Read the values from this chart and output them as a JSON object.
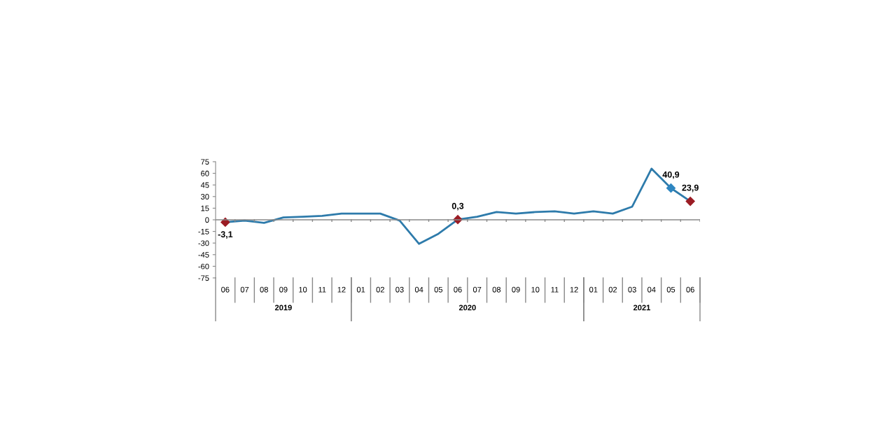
{
  "chart_data": {
    "type": "line",
    "categories": [
      "06",
      "07",
      "08",
      "09",
      "10",
      "11",
      "12",
      "01",
      "02",
      "03",
      "04",
      "05",
      "06",
      "07",
      "08",
      "09",
      "10",
      "11",
      "12",
      "01",
      "02",
      "03",
      "04",
      "05",
      "06"
    ],
    "series": [
      {
        "color": "#2e7bab",
        "values": [
          -3.1,
          -1,
          -4,
          3,
          4,
          5,
          8,
          8,
          8,
          -1,
          -31,
          -18,
          0.3,
          4,
          10,
          8,
          10,
          11,
          8,
          11,
          8,
          17,
          66,
          40.9,
          23.9
        ],
        "colors": [
          "#9b1c24",
          null,
          null,
          null,
          null,
          null,
          null,
          null,
          null,
          null,
          null,
          null,
          "#9b1c24",
          null,
          null,
          null,
          null,
          null,
          null,
          null,
          null,
          null,
          null,
          "#2e86c1",
          "#9b1c24"
        ],
        "value_labels": [
          "-3,1",
          null,
          null,
          null,
          null,
          null,
          null,
          null,
          null,
          null,
          null,
          null,
          "0,3",
          null,
          null,
          null,
          null,
          null,
          null,
          null,
          null,
          null,
          null,
          "40,9",
          "23,9"
        ]
      }
    ],
    "annotations": [
      "2019",
      "2020",
      "2021"
    ],
    "ylim": [
      -75,
      75
    ],
    "yticks": [
      -75,
      -60,
      -45,
      -30,
      -15,
      0,
      15,
      30,
      45,
      60,
      75
    ],
    "line_style": "solid"
  }
}
